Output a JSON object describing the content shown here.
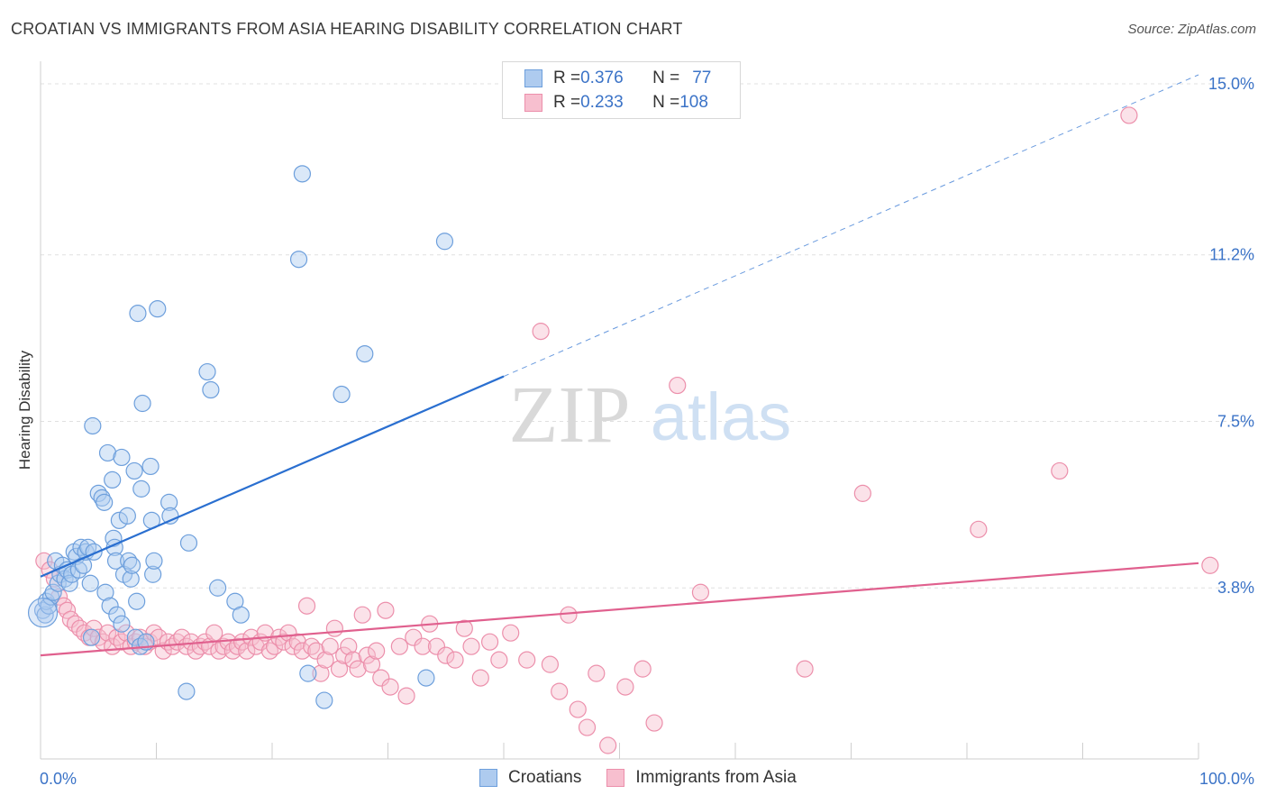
{
  "header": {
    "title": "CROATIAN VS IMMIGRANTS FROM ASIA HEARING DISABILITY CORRELATION CHART",
    "source": "Source: ZipAtlas.com"
  },
  "watermark": {
    "zip": "ZIP",
    "atlas": "atlas"
  },
  "legend": {
    "rows": [
      {
        "r_label": "R = ",
        "r_value": "0.376",
        "n_label": "N = ",
        "n_value": "77"
      },
      {
        "r_label": "R = ",
        "r_value": "0.233",
        "n_label": "N = ",
        "n_value": "108"
      }
    ]
  },
  "bottom_legend": [
    "Croatians",
    "Immigrants from Asia"
  ],
  "colors": {
    "croatians_fill": "#aecbef",
    "croatians_stroke": "#6d9fdc",
    "croatians_line": "#2a6fd0",
    "asia_fill": "#f7bfcf",
    "asia_stroke": "#ec8fab",
    "asia_line": "#e0608e",
    "tick_text": "#3b73c7",
    "grid": "#e0e0e0"
  },
  "chart_data": {
    "type": "scatter",
    "title": "CROATIAN VS IMMIGRANTS FROM ASIA HEARING DISABILITY CORRELATION CHART",
    "xlabel": "",
    "ylabel": "Hearing Disability",
    "xlim": [
      0,
      100
    ],
    "ylim": [
      0,
      15.3
    ],
    "x_tick_labels": [
      "0.0%",
      "100.0%"
    ],
    "y_ticks": [
      3.8,
      7.5,
      11.2,
      15.0
    ],
    "y_tick_labels": [
      "3.8%",
      "7.5%",
      "11.2%",
      "15.0%"
    ],
    "grid": true,
    "legend_placement": "top-center",
    "series": [
      {
        "name": "Croatians",
        "R": 0.376,
        "N": 77,
        "trend": {
          "x0": 0,
          "y0": 4.05,
          "x1": 40,
          "y1": 8.5,
          "dashed_to_x": 100,
          "dashed_to_y": 15.2
        },
        "points": [
          [
            0.2,
            3.3
          ],
          [
            0.4,
            3.2
          ],
          [
            0.5,
            3.5
          ],
          [
            0.7,
            3.4
          ],
          [
            0.9,
            3.6
          ],
          [
            1.1,
            3.7
          ],
          [
            1.3,
            4.4
          ],
          [
            1.5,
            3.9
          ],
          [
            1.7,
            4.1
          ],
          [
            1.9,
            4.3
          ],
          [
            2.1,
            4.0
          ],
          [
            2.3,
            4.2
          ],
          [
            2.5,
            3.9
          ],
          [
            2.7,
            4.1
          ],
          [
            2.9,
            4.6
          ],
          [
            3.1,
            4.5
          ],
          [
            3.3,
            4.2
          ],
          [
            3.5,
            4.7
          ],
          [
            3.7,
            4.3
          ],
          [
            3.9,
            4.6
          ],
          [
            4.1,
            4.7
          ],
          [
            4.3,
            3.9
          ],
          [
            4.4,
            2.7
          ],
          [
            4.5,
            7.4
          ],
          [
            4.6,
            4.6
          ],
          [
            5.0,
            5.9
          ],
          [
            5.3,
            5.8
          ],
          [
            5.5,
            5.7
          ],
          [
            5.6,
            3.7
          ],
          [
            5.8,
            6.8
          ],
          [
            6.0,
            3.4
          ],
          [
            6.2,
            6.2
          ],
          [
            6.3,
            4.9
          ],
          [
            6.4,
            4.7
          ],
          [
            6.5,
            4.4
          ],
          [
            6.6,
            3.2
          ],
          [
            6.8,
            5.3
          ],
          [
            7.0,
            6.7
          ],
          [
            7.0,
            3.0
          ],
          [
            7.2,
            4.1
          ],
          [
            7.5,
            5.4
          ],
          [
            7.6,
            4.4
          ],
          [
            7.8,
            4.0
          ],
          [
            7.9,
            4.3
          ],
          [
            8.1,
            6.4
          ],
          [
            8.2,
            2.7
          ],
          [
            8.3,
            3.5
          ],
          [
            8.4,
            9.9
          ],
          [
            8.6,
            2.5
          ],
          [
            8.7,
            6.0
          ],
          [
            8.8,
            7.9
          ],
          [
            9.1,
            2.6
          ],
          [
            9.5,
            6.5
          ],
          [
            9.6,
            5.3
          ],
          [
            9.7,
            4.1
          ],
          [
            9.8,
            4.4
          ],
          [
            10.1,
            10.0
          ],
          [
            11.1,
            5.7
          ],
          [
            11.2,
            5.4
          ],
          [
            12.6,
            1.5
          ],
          [
            12.8,
            4.8
          ],
          [
            14.4,
            8.6
          ],
          [
            14.7,
            8.2
          ],
          [
            15.3,
            3.8
          ],
          [
            16.8,
            3.5
          ],
          [
            17.3,
            3.2
          ],
          [
            22.3,
            11.1
          ],
          [
            22.6,
            13.0
          ],
          [
            23.1,
            1.9
          ],
          [
            24.5,
            1.3
          ],
          [
            26.0,
            8.1
          ],
          [
            28.0,
            9.0
          ],
          [
            33.3,
            1.8
          ],
          [
            34.9,
            11.5
          ]
        ]
      },
      {
        "name": "Immigrants from Asia",
        "R": 0.233,
        "N": 108,
        "trend": {
          "x0": 0,
          "y0": 2.3,
          "x1": 100,
          "y1": 4.35
        },
        "points": [
          [
            0.3,
            4.4
          ],
          [
            0.8,
            4.2
          ],
          [
            1.2,
            4.0
          ],
          [
            1.6,
            3.6
          ],
          [
            2.0,
            3.4
          ],
          [
            2.3,
            3.3
          ],
          [
            2.6,
            3.1
          ],
          [
            3.0,
            3.0
          ],
          [
            3.4,
            2.9
          ],
          [
            3.8,
            2.8
          ],
          [
            4.2,
            2.7
          ],
          [
            4.6,
            2.9
          ],
          [
            5.0,
            2.7
          ],
          [
            5.4,
            2.6
          ],
          [
            5.8,
            2.8
          ],
          [
            6.2,
            2.5
          ],
          [
            6.6,
            2.7
          ],
          [
            7.0,
            2.6
          ],
          [
            7.4,
            2.8
          ],
          [
            7.8,
            2.5
          ],
          [
            8.2,
            2.6
          ],
          [
            8.6,
            2.7
          ],
          [
            9.0,
            2.5
          ],
          [
            9.4,
            2.6
          ],
          [
            9.8,
            2.8
          ],
          [
            10.2,
            2.7
          ],
          [
            10.6,
            2.4
          ],
          [
            11.0,
            2.6
          ],
          [
            11.4,
            2.5
          ],
          [
            11.8,
            2.6
          ],
          [
            12.2,
            2.7
          ],
          [
            12.6,
            2.5
          ],
          [
            13.0,
            2.6
          ],
          [
            13.4,
            2.4
          ],
          [
            13.8,
            2.5
          ],
          [
            14.2,
            2.6
          ],
          [
            14.6,
            2.5
          ],
          [
            15.0,
            2.8
          ],
          [
            15.4,
            2.4
          ],
          [
            15.8,
            2.5
          ],
          [
            16.2,
            2.6
          ],
          [
            16.6,
            2.4
          ],
          [
            17.0,
            2.5
          ],
          [
            17.4,
            2.6
          ],
          [
            17.8,
            2.4
          ],
          [
            18.2,
            2.7
          ],
          [
            18.6,
            2.5
          ],
          [
            19.0,
            2.6
          ],
          [
            19.4,
            2.8
          ],
          [
            19.8,
            2.4
          ],
          [
            20.2,
            2.5
          ],
          [
            20.6,
            2.7
          ],
          [
            21.0,
            2.6
          ],
          [
            21.4,
            2.8
          ],
          [
            21.8,
            2.5
          ],
          [
            22.2,
            2.6
          ],
          [
            22.6,
            2.4
          ],
          [
            23.0,
            3.4
          ],
          [
            23.4,
            2.5
          ],
          [
            23.8,
            2.4
          ],
          [
            24.2,
            1.9
          ],
          [
            24.6,
            2.2
          ],
          [
            25.0,
            2.5
          ],
          [
            25.4,
            2.9
          ],
          [
            25.8,
            2.0
          ],
          [
            26.2,
            2.3
          ],
          [
            26.6,
            2.5
          ],
          [
            27.0,
            2.2
          ],
          [
            27.4,
            2.0
          ],
          [
            27.8,
            3.2
          ],
          [
            28.2,
            2.3
          ],
          [
            28.6,
            2.1
          ],
          [
            29.0,
            2.4
          ],
          [
            29.4,
            1.8
          ],
          [
            29.8,
            3.3
          ],
          [
            30.2,
            1.6
          ],
          [
            31.0,
            2.5
          ],
          [
            31.6,
            1.4
          ],
          [
            32.2,
            2.7
          ],
          [
            33.0,
            2.5
          ],
          [
            33.6,
            3.0
          ],
          [
            34.2,
            2.5
          ],
          [
            35.0,
            2.3
          ],
          [
            35.8,
            2.2
          ],
          [
            36.6,
            2.9
          ],
          [
            37.2,
            2.5
          ],
          [
            38.0,
            1.8
          ],
          [
            38.8,
            2.6
          ],
          [
            39.6,
            2.2
          ],
          [
            40.6,
            2.8
          ],
          [
            42.0,
            2.2
          ],
          [
            43.2,
            9.5
          ],
          [
            44.0,
            2.1
          ],
          [
            44.8,
            1.5
          ],
          [
            45.6,
            3.2
          ],
          [
            46.4,
            1.1
          ],
          [
            47.2,
            0.7
          ],
          [
            48.0,
            1.9
          ],
          [
            49.0,
            0.3
          ],
          [
            50.5,
            1.6
          ],
          [
            52.0,
            2.0
          ],
          [
            53.0,
            0.8
          ],
          [
            55.0,
            8.3
          ],
          [
            57.0,
            3.7
          ],
          [
            66.0,
            2.0
          ],
          [
            71.0,
            5.9
          ],
          [
            81.0,
            5.1
          ],
          [
            88.0,
            6.4
          ],
          [
            94.0,
            14.3
          ],
          [
            101.0,
            4.3
          ]
        ]
      }
    ]
  }
}
